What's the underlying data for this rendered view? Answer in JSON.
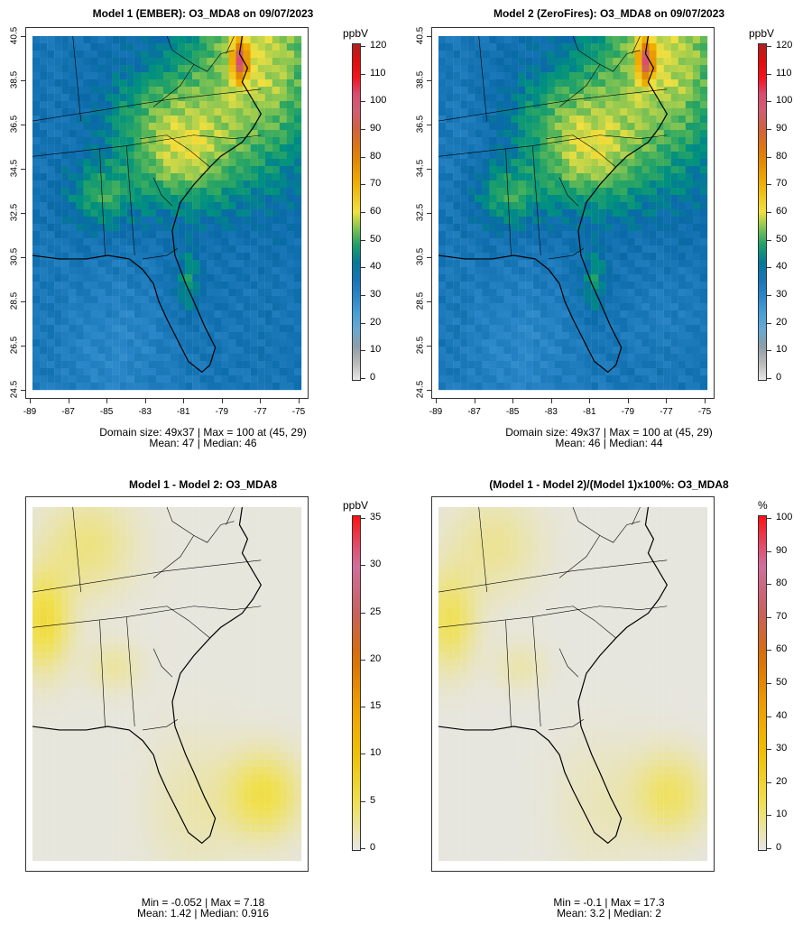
{
  "panels": [
    {
      "title": "Model 1 (EMBER): O3_MDA8 on 09/07/2023",
      "stat1": "Domain size: 49x37 | Max = 100 at (45, 29)",
      "stat2": "Mean: 47 |  Median: 46",
      "unit": "ppbV",
      "ticks": [
        "0",
        "10",
        "20",
        "30",
        "40",
        "50",
        "60",
        "70",
        "80",
        "90",
        "100",
        "110",
        "120"
      ],
      "range": [
        0,
        120
      ]
    },
    {
      "title": "Model 2 (ZeroFires): O3_MDA8 on 09/07/2023",
      "stat1": "Domain size: 49x37 | Max = 100 at (45, 29)",
      "stat2": "Mean: 46 |  Median: 44",
      "unit": "ppbV",
      "ticks": [
        "0",
        "10",
        "20",
        "30",
        "40",
        "50",
        "60",
        "70",
        "80",
        "90",
        "100",
        "110",
        "120"
      ],
      "range": [
        0,
        120
      ]
    },
    {
      "title": "Model 1 - Model 2: O3_MDA8",
      "stat1": "Min = -0.052 | Max = 7.18",
      "stat2": "Mean: 1.42 |  Median: 0.916",
      "unit": "ppbV",
      "ticks": [
        "0",
        "5",
        "10",
        "15",
        "20",
        "25",
        "30",
        "35"
      ],
      "range": [
        0,
        35
      ]
    },
    {
      "title": "(Model 1 - Model 2)/(Model 1)x100%: O3_MDA8",
      "stat1": "Min = -0.1 | Max = 17.3",
      "stat2": "Mean: 3.2 |  Median: 2",
      "unit": "%",
      "ticks": [
        "0",
        "10",
        "20",
        "30",
        "40",
        "50",
        "60",
        "70",
        "80",
        "90",
        "100"
      ],
      "range": [
        0,
        100
      ]
    }
  ],
  "axes": {
    "lon": [
      "-89",
      "-87",
      "-85",
      "-83",
      "-81",
      "-79",
      "-77",
      "-75"
    ],
    "lat": [
      "40.5",
      "38.5",
      "36.5",
      "34.5",
      "32.5",
      "30.5",
      "28.5",
      "26.5",
      "24.5"
    ]
  }
}
